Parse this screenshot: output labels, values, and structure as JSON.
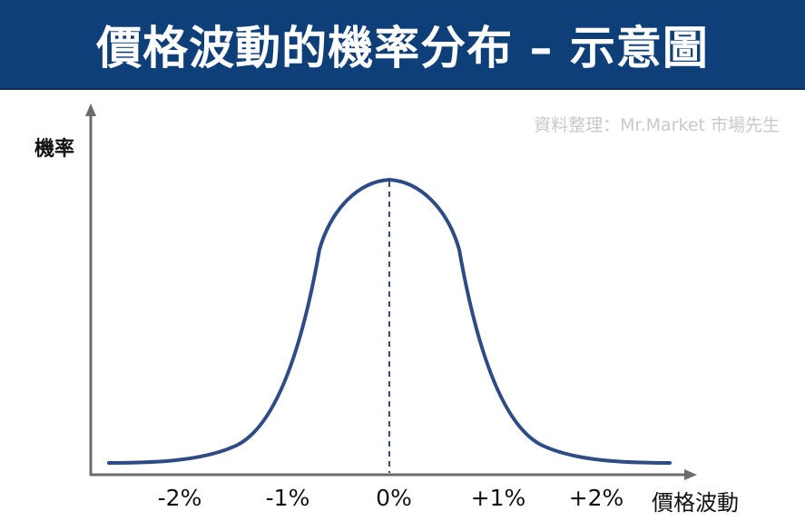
{
  "header": {
    "title": "價格波動的機率分布 – 示意圖",
    "background_color": "#0f3f78"
  },
  "source_note": "資料整理：Mr.Market 市場先生",
  "axes": {
    "y_label": "機率",
    "x_label": "價格波動"
  },
  "x_ticks": [
    "-2%",
    "-1%",
    "0%",
    "+1%",
    "+2%"
  ],
  "curve": {
    "shape": "bell",
    "color": "#2f4b85",
    "center_line": "dashed"
  }
}
